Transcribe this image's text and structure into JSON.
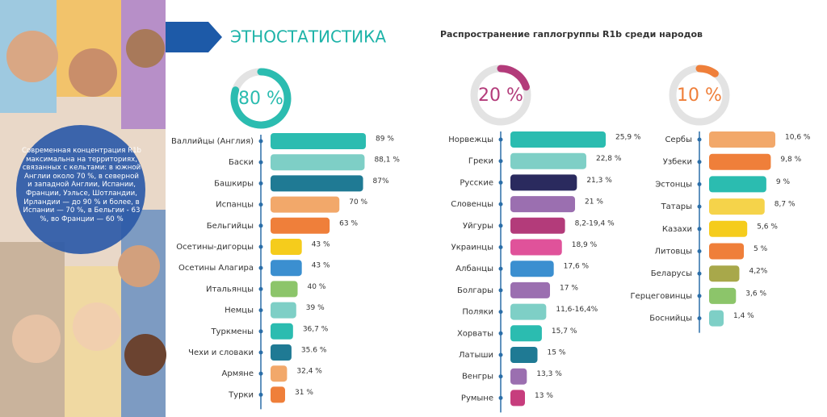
{
  "header": {
    "title": "ЭТНОСТАТИСТИКА",
    "subtitle": "Распространение гаплогруппы  R1b среди народов",
    "note": "Современная концентрация R1b максимальна на территориях, связанных с кельтами: в южной Англии около 70 %, в северной и западной Англии, Испании, Франции, Уэльсе, Шотландии, Ирландии — до 90 % и более, в Испании — 70 %, в Бельгии - 63 %, во Франции — 60 %"
  },
  "chart_data": [
    {
      "type": "bar",
      "gauge_value": 80,
      "gauge_label": "80 %",
      "gauge_color": "#2bbcb0",
      "categories": [
        "Валлийцы (Англия)",
        "Баски",
        "Башкиры",
        "Испанцы",
        "Бельгийцы",
        "Осетины-дигорцы",
        "Осетины Алагира",
        "Итальянцы",
        "Немцы",
        "Туркмены",
        "Чехи и словаки",
        "Армяне",
        "Турки"
      ],
      "values": [
        89,
        88.1,
        87,
        70,
        63,
        43,
        43,
        40,
        39,
        36.7,
        35.6,
        32.4,
        31
      ],
      "value_labels": [
        "89 %",
        "88,1 %",
        "87%",
        "70 %",
        "63 %",
        "43 %",
        "43 %",
        "40 %",
        "39 %",
        "36,7 %",
        "35.6 %",
        "32,4 %",
        "31 %"
      ],
      "colors": [
        "#2bbcb0",
        "#7ecfc6",
        "#1f7a94",
        "#f2a86a",
        "#ef7f3a",
        "#f5cc1c",
        "#3b8fd0",
        "#8cc56a",
        "#7ecfc6",
        "#2bbcb0",
        "#1f7a94",
        "#f2a86a",
        "#ef7f3a"
      ]
    },
    {
      "type": "bar",
      "gauge_value": 20,
      "gauge_label": "20 %",
      "gauge_color": "#b33b7a",
      "categories": [
        "Норвежцы",
        "Греки",
        "Русские",
        "Словенцы",
        "Уйгуры",
        "Украинцы",
        "Албанцы",
        "Болгары",
        "Поляки",
        "Хорваты",
        "Латыши",
        "Венгры",
        "Румыне"
      ],
      "values": [
        25.9,
        22.8,
        21.3,
        21,
        19.4,
        18.9,
        17.6,
        17,
        16.4,
        15.7,
        15,
        13.3,
        13
      ],
      "value_labels": [
        "25,9 %",
        "22,8 %",
        "21,3 %",
        "21 %",
        "8,2-19,4 %",
        "18,9 %",
        "17,6 %",
        "17 %",
        "11,6-16,4%",
        "15,7 %",
        "15 %",
        "13,3 %",
        "13 %"
      ],
      "colors": [
        "#2bbcb0",
        "#7ecfc6",
        "#2a2a5e",
        "#9b6fb0",
        "#b33b7a",
        "#e0529a",
        "#3b8fd0",
        "#9b6fb0",
        "#7ecfc6",
        "#2bbcb0",
        "#1f7a94",
        "#9b6fb0",
        "#c73d7d"
      ]
    },
    {
      "type": "bar",
      "gauge_value": 10,
      "gauge_label": "10 %",
      "gauge_color": "#ef7f3a",
      "categories": [
        "Сербы",
        "Узбеки",
        "Эстонцы",
        "Татары",
        "Казахи",
        "Литовцы",
        "Беларусы",
        "Герцеговинцы",
        "Боснийцы"
      ],
      "values": [
        10.6,
        9.8,
        9,
        8.7,
        5.6,
        5,
        4.2,
        3.6,
        1.4
      ],
      "value_labels": [
        "10,6 %",
        "9,8 %",
        "9 %",
        "8,7 %",
        "5,6 %",
        "5 %",
        "4,2%",
        "3,6 %",
        "1,4 %"
      ],
      "colors": [
        "#f2a86a",
        "#ef7f3a",
        "#2bbcb0",
        "#f5d34a",
        "#f5cc1c",
        "#ef7f3a",
        "#a8a84a",
        "#8cc56a",
        "#7ecfc6"
      ]
    }
  ]
}
